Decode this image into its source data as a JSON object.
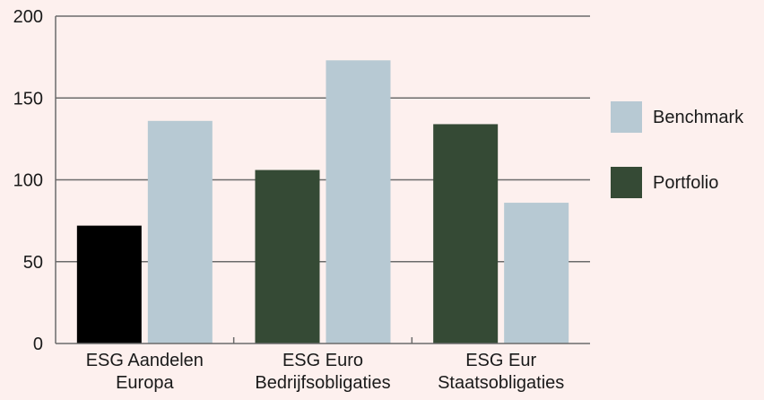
{
  "chart_data": {
    "type": "bar",
    "categories": [
      [
        "ESG Aandelen",
        "Europa"
      ],
      [
        "ESG Euro",
        "Bedrijfsobligaties"
      ],
      [
        "ESG Eur",
        "Staatsobligaties"
      ]
    ],
    "series": [
      {
        "name": "Portfolio",
        "values": [
          72,
          106,
          134
        ],
        "colors": [
          "#000000",
          "#354a35",
          "#354a35"
        ]
      },
      {
        "name": "Benchmark",
        "values": [
          136,
          173,
          86
        ],
        "colors": [
          "#b7c9d3",
          "#b7c9d3",
          "#b7c9d3"
        ]
      }
    ],
    "ylim": [
      0,
      200
    ],
    "yticks": [
      "0",
      "50",
      "100",
      "150",
      "200"
    ],
    "grid": true,
    "legend": {
      "position": "right",
      "entries": [
        {
          "label": "Benchmark",
          "color": "#b7c9d3"
        },
        {
          "label": "Portfolio",
          "color": "#354a35"
        }
      ]
    },
    "background": "#fdf0ee",
    "axis_color": "#6b6b6b"
  }
}
